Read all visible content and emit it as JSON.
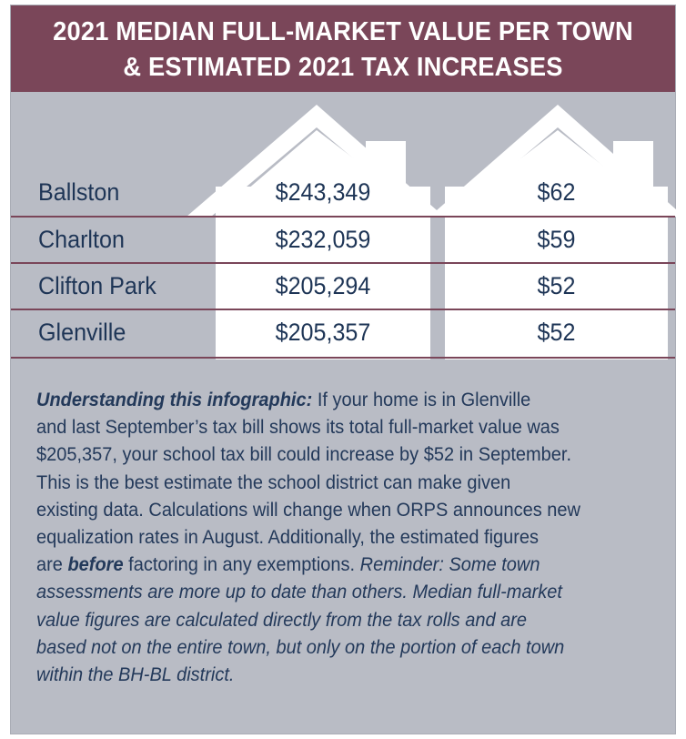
{
  "header": {
    "line1": "2021 MEDIAN FULL-MARKET VALUE PER TOWN",
    "line2": "& ESTIMATED 2021 TAX INCREASES"
  },
  "rows": [
    {
      "town": "Ballston",
      "value": "$243,349",
      "tax": "$62"
    },
    {
      "town": "Charlton",
      "value": "$232,059",
      "tax": "$59"
    },
    {
      "town": "Clifton Park",
      "value": "$205,294",
      "tax": "$52"
    },
    {
      "town": "Glenville",
      "value": "$205,357",
      "tax": "$52"
    }
  ],
  "note": {
    "lead": "Understanding this infographic:",
    "l1": " If your home is in Glenville",
    "l2": "and last September’s tax bill shows its total full-market value was",
    "l3": "$205,357, your school tax bill could increase by $52 in September.",
    "l4": "This is the best estimate the school district can make given",
    "l5": "existing data. Calculations will change when ORPS announces new",
    "l6": "equalization rates in August. Additionally, the estimated figures",
    "l7a": "are ",
    "l7b": "before",
    "l7c": " factoring in any exemptions. ",
    "l7d": "Reminder: Some town",
    "l8": "assessments are more up to date than others. Median full-market",
    "l9": "value figures are calculated directly from the tax rolls and are",
    "l10": "based not on the entire town, but only on the portion of each town",
    "l11": "within the BH-BL district."
  },
  "colors": {
    "header": "#7a4659",
    "panel": "#b9bcc5",
    "text": "#1e3556",
    "house": "#ffffff"
  }
}
